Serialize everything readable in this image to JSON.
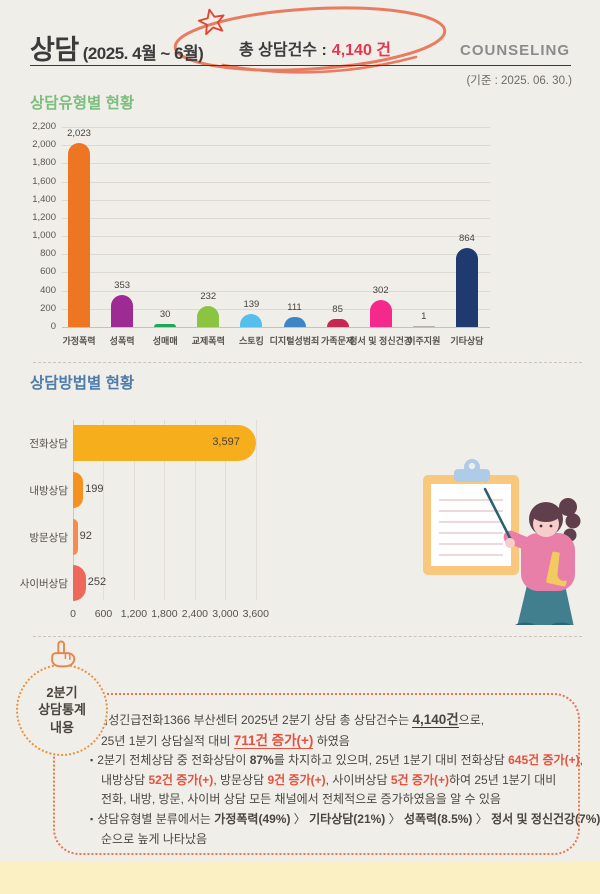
{
  "header": {
    "title": "상담",
    "period": "(2025. 4월 ~ 6월)",
    "total_label": "총 상담건수 :",
    "total_value": "4,140 건",
    "english_title": "COUNSELING",
    "as_of": "(기준 : 2025. 06. 30.)"
  },
  "colors": {
    "background": "#F0EEE9",
    "accent_red": "#E8354E",
    "doodle_coral": "#E87B60",
    "title_green": "#7CBE7E",
    "title_blue": "#4F7DA9",
    "summary_box_border": "#E8764F",
    "badge_border": "#E8933F",
    "footer_band": "#FBF0C4",
    "text_dark": "#3B3B3B",
    "text_gray": "#8B8B8B"
  },
  "chart_data": [
    {
      "type": "bar",
      "title": "상담유형별 현황",
      "categories": [
        "가정폭력",
        "성폭력",
        "성매매",
        "교제폭력",
        "스토킹",
        "디지털성범죄",
        "가족문제",
        "정서 및 정신건강",
        "이주지원",
        "기타상담"
      ],
      "values": [
        2023,
        353,
        30,
        232,
        139,
        111,
        85,
        302,
        1,
        864
      ],
      "value_labels": [
        "2,023",
        "353",
        "30",
        "232",
        "139",
        "111",
        "85",
        "302",
        "1",
        "864"
      ],
      "bar_colors": [
        "#EE7623",
        "#9E2B94",
        "#1FA65B",
        "#8BC440",
        "#54BEEC",
        "#3C86C5",
        "#C62853",
        "#F5298C",
        "#B5B1A8",
        "#1E3A6E"
      ],
      "xlabel": "",
      "ylabel": "",
      "ylim": [
        0,
        2200
      ],
      "yticks": [
        "2,200",
        "2,000",
        "1,800",
        "1,600",
        "1,400",
        "1,200",
        "1,000",
        "800",
        "600",
        "400",
        "200",
        "0"
      ],
      "grid": true,
      "legend": "none"
    },
    {
      "type": "bar-horizontal",
      "title": "상담방법별 현황",
      "categories": [
        "전화상담",
        "내방상담",
        "방문상담",
        "사이버상담"
      ],
      "values": [
        3597,
        199,
        92,
        252
      ],
      "value_labels": [
        "3,597",
        "199",
        "92",
        "252"
      ],
      "bar_colors": [
        "#F6AE1C",
        "#F5921F",
        "#F58B51",
        "#ED685B"
      ],
      "xlabel": "",
      "ylabel": "",
      "xlim": [
        0,
        3600
      ],
      "xticks": [
        "0",
        "600",
        "1,200",
        "1,800",
        "2,400",
        "3,000",
        "3,600"
      ],
      "grid": true,
      "legend": "none"
    }
  ],
  "summary": {
    "badge": [
      "2분기",
      "상담통계",
      "내용"
    ],
    "bullet_marker": "▪",
    "lines": [
      {
        "bullet": true,
        "segments": [
          {
            "t": "여성긴급전화1366 부산센터 2025년 2분기 상담 총 상담건수는 ",
            "s": "n"
          },
          {
            "t": "4,140건",
            "s": "bu"
          },
          {
            "t": "으로,",
            "s": "n"
          }
        ]
      },
      {
        "bullet": false,
        "segments": [
          {
            "t": "25년 1분기 상담실적 대비 ",
            "s": "n"
          },
          {
            "t": "711건 증가(+)",
            "s": "ru"
          },
          {
            "t": " 하였음",
            "s": "n"
          }
        ]
      },
      {
        "bullet": true,
        "segments": [
          {
            "t": "2분기 전체상담 중 전화상담이 ",
            "s": "n"
          },
          {
            "t": "87%",
            "s": "b"
          },
          {
            "t": "를 차지하고 있으며, 25년 1분기 대비 전화상담 ",
            "s": "n"
          },
          {
            "t": "645건 증가(+)",
            "s": "r"
          },
          {
            "t": ",",
            "s": "n"
          }
        ]
      },
      {
        "bullet": false,
        "segments": [
          {
            "t": "내방상담 ",
            "s": "n"
          },
          {
            "t": "52건 증가(+)",
            "s": "r"
          },
          {
            "t": ", 방문상담 ",
            "s": "n"
          },
          {
            "t": "9건 증가(+)",
            "s": "r"
          },
          {
            "t": ", 사이버상담 ",
            "s": "n"
          },
          {
            "t": "5건 증가(+)",
            "s": "r"
          },
          {
            "t": "하여 25년 1분기 대비",
            "s": "n"
          }
        ]
      },
      {
        "bullet": false,
        "segments": [
          {
            "t": "전화, 내방, 방문, 사이버 상담 모든 채널에서 전체적으로 증가하였음을 알 수 있음",
            "s": "n"
          }
        ]
      },
      {
        "bullet": true,
        "segments": [
          {
            "t": "상담유형별 분류에서는 ",
            "s": "n"
          },
          {
            "t": "가정폭력(49%)",
            "s": "b"
          },
          {
            "t": " 〉 ",
            "s": "n"
          },
          {
            "t": "기타상담(21%)",
            "s": "b"
          },
          {
            "t": " 〉 ",
            "s": "n"
          },
          {
            "t": "성폭력(8.5%)",
            "s": "b"
          },
          {
            "t": " 〉 ",
            "s": "n"
          },
          {
            "t": "정서 및 정신건강(7%)",
            "s": "b"
          }
        ]
      },
      {
        "bullet": false,
        "segments": [
          {
            "t": "순으로 높게 나타났음",
            "s": "n"
          }
        ]
      }
    ]
  }
}
